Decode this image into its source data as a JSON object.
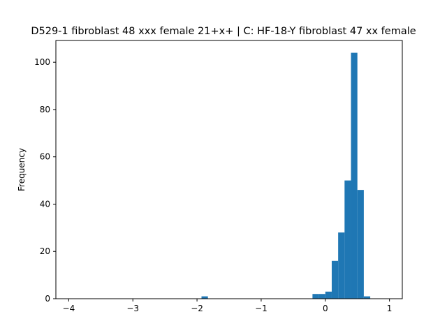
{
  "chart_data": {
    "type": "bar",
    "title": "D529-1 fibroblast 48 xxx female 21+x+ | C: HF-18-Y fibroblast 47 xx female",
    "xlabel": "",
    "ylabel": "Frequency",
    "xlim": [
      -4.2,
      1.2
    ],
    "ylim": [
      0,
      109.2
    ],
    "xticks": [
      -4,
      -3,
      -2,
      -1,
      0,
      1
    ],
    "yticks": [
      0,
      20,
      40,
      60,
      80,
      100
    ],
    "grid": false,
    "legend": "none",
    "bar_color": "#1f77b4",
    "bins": [
      {
        "x0": -1.93,
        "x1": -1.83,
        "count": 1
      },
      {
        "x0": -0.2,
        "x1": -0.1,
        "count": 2
      },
      {
        "x0": -0.1,
        "x1": 0.0,
        "count": 2
      },
      {
        "x0": 0.0,
        "x1": 0.1,
        "count": 3
      },
      {
        "x0": 0.1,
        "x1": 0.2,
        "count": 16
      },
      {
        "x0": 0.2,
        "x1": 0.3,
        "count": 28
      },
      {
        "x0": 0.3,
        "x1": 0.4,
        "count": 50
      },
      {
        "x0": 0.4,
        "x1": 0.5,
        "count": 104
      },
      {
        "x0": 0.5,
        "x1": 0.6,
        "count": 46
      },
      {
        "x0": 0.6,
        "x1": 0.7,
        "count": 1
      }
    ]
  }
}
